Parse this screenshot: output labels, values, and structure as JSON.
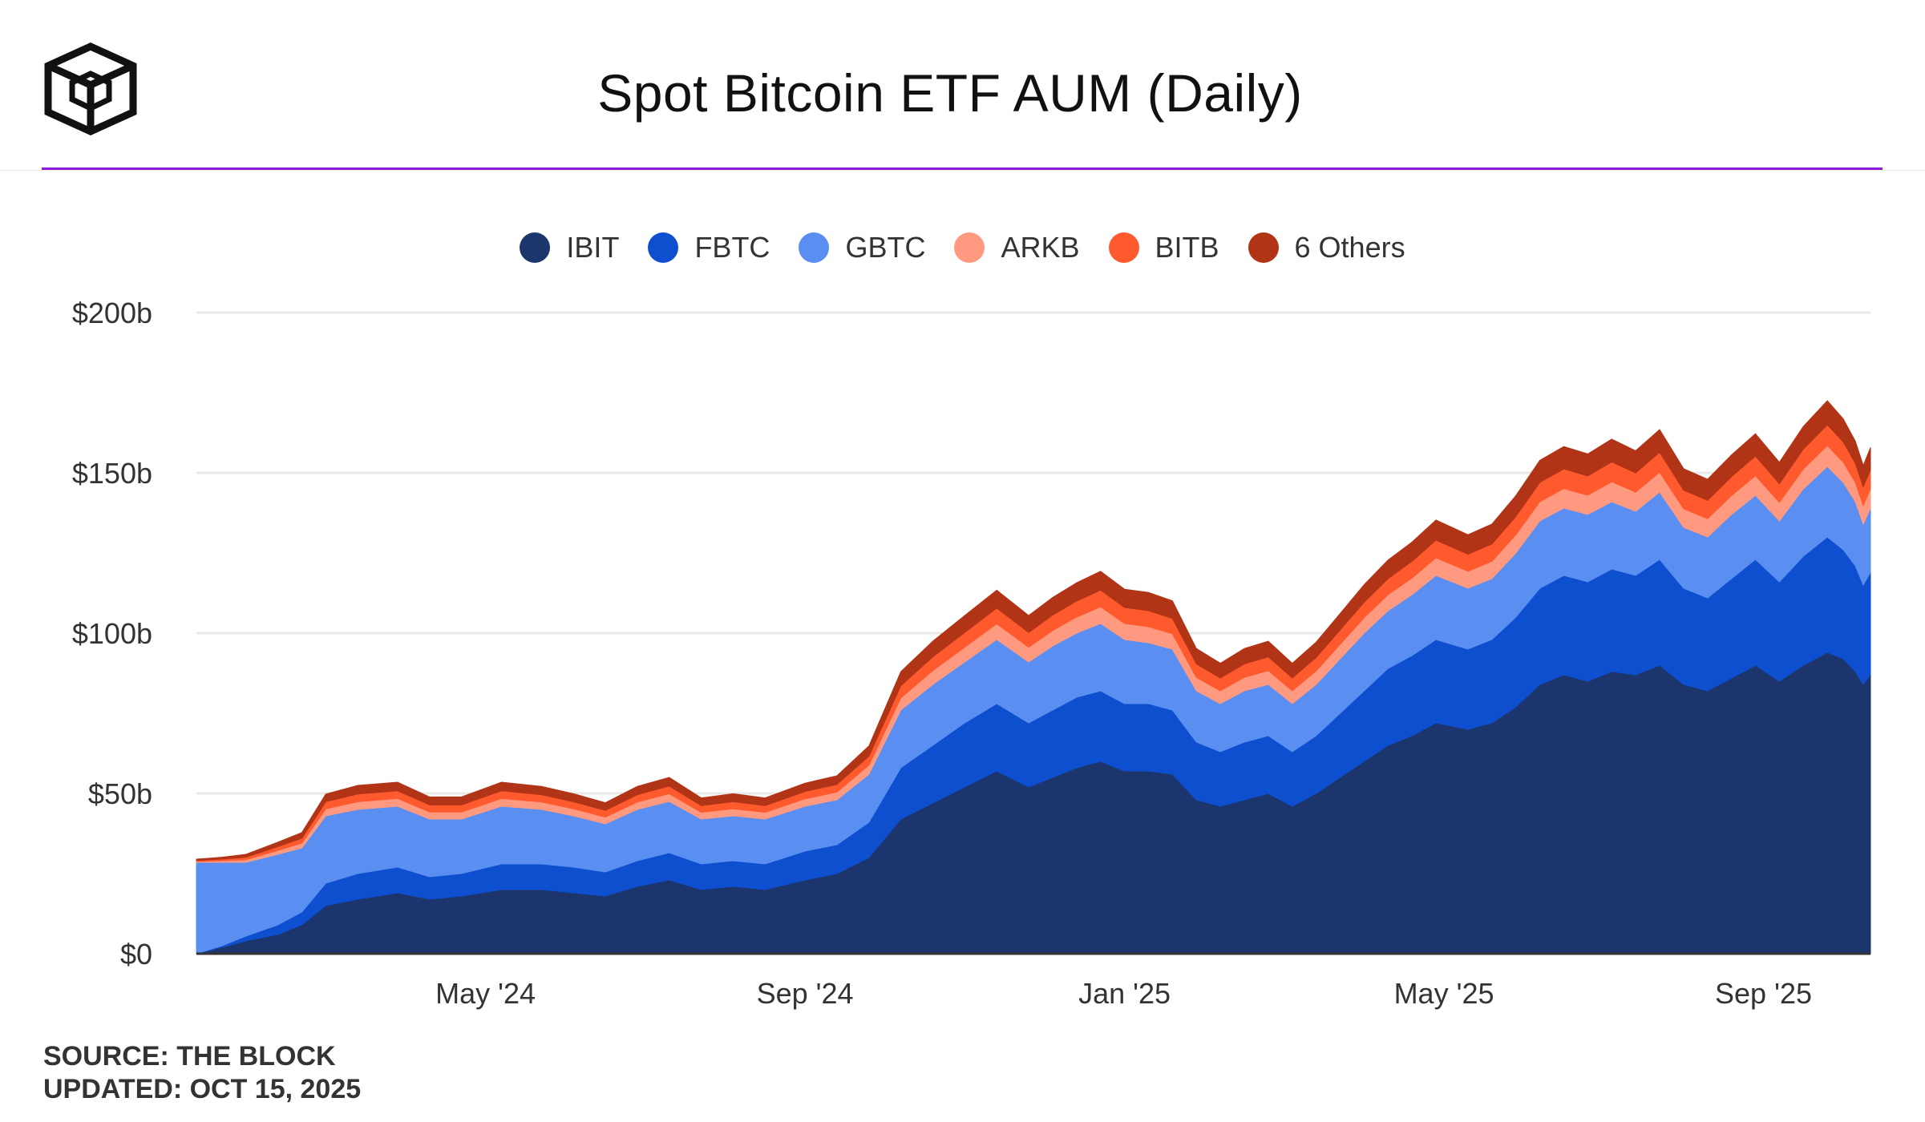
{
  "title": "Spot Bitcoin ETF AUM (Daily)",
  "source": "SOURCE: THE BLOCK",
  "updated": "UPDATED: OCT 15, 2025",
  "colors": {
    "accent": "#8e1bd6",
    "grid": "#e8e8e8",
    "axis": "#333333"
  },
  "chart_data": {
    "type": "area",
    "stacked": true,
    "title": "Spot Bitcoin ETF AUM (Daily)",
    "xlabel": "",
    "ylabel": "",
    "ylim": [
      0,
      200
    ],
    "y_unit": "billion USD",
    "y_ticks": [
      0,
      50,
      100,
      150,
      200
    ],
    "y_tick_labels": [
      "$0",
      "$50b",
      "$100b",
      "$150b",
      "$200b"
    ],
    "x_ticks": [
      3.5,
      7.5,
      11.5,
      15.5,
      19.5
    ],
    "x_tick_labels": [
      "May '24",
      "Sep '24",
      "Jan '25",
      "May '25",
      "Sep '25"
    ],
    "x_range": [
      -0.12,
      20.84
    ],
    "x": [
      -0.12,
      0.2,
      0.5,
      0.9,
      1.2,
      1.5,
      1.9,
      2.4,
      2.8,
      3.2,
      3.7,
      4.2,
      4.6,
      5.0,
      5.4,
      5.8,
      6.2,
      6.6,
      7.0,
      7.5,
      7.9,
      8.3,
      8.7,
      9.1,
      9.5,
      9.9,
      10.3,
      10.6,
      10.9,
      11.2,
      11.5,
      11.8,
      12.1,
      12.4,
      12.7,
      13.0,
      13.3,
      13.6,
      13.9,
      14.2,
      14.5,
      14.8,
      15.1,
      15.4,
      15.8,
      16.1,
      16.4,
      16.7,
      17.0,
      17.3,
      17.6,
      17.9,
      18.2,
      18.5,
      18.8,
      19.1,
      19.4,
      19.7,
      20.0,
      20.3,
      20.5,
      20.65,
      20.75,
      20.84
    ],
    "series": [
      {
        "name": "IBIT",
        "color": "#1c356c",
        "values": [
          0,
          2,
          4,
          6,
          9,
          15,
          17,
          19,
          17,
          18,
          20,
          20,
          19,
          18,
          21,
          23,
          20,
          21,
          20,
          23,
          25,
          30,
          42,
          47,
          52,
          57,
          52,
          55,
          58,
          60,
          57,
          57,
          56,
          48,
          46,
          48,
          50,
          46,
          50,
          55,
          60,
          65,
          68,
          72,
          70,
          72,
          77,
          84,
          87,
          85,
          88,
          87,
          90,
          84,
          82,
          86,
          90,
          85,
          90,
          94,
          92,
          88,
          84,
          87
        ]
      },
      {
        "name": "FBTC",
        "color": "#0e4fd0",
        "values": [
          0,
          0.5,
          1.5,
          3,
          4,
          7,
          8,
          8,
          7,
          7,
          8,
          8,
          8,
          7.5,
          8,
          8.5,
          8,
          8,
          8,
          9,
          9,
          11,
          16,
          18,
          20,
          21,
          20,
          21,
          22,
          22,
          21,
          21,
          20,
          18,
          17,
          18,
          18,
          17,
          18,
          20,
          22,
          24,
          25,
          26,
          25,
          26,
          28,
          30,
          31,
          31,
          32,
          31,
          33,
          30,
          29,
          31,
          33,
          31,
          34,
          36,
          34,
          33,
          31,
          32
        ]
      },
      {
        "name": "GBTC",
        "color": "#5a8ef0",
        "values": [
          28.5,
          26,
          23,
          22,
          20,
          21,
          20,
          19,
          18,
          17,
          18,
          17,
          16,
          15,
          16,
          16,
          14,
          14,
          14,
          14,
          14,
          15,
          18,
          19,
          19,
          20,
          19,
          20,
          20,
          21,
          20,
          19,
          19,
          16,
          15,
          16,
          16,
          15,
          16,
          17,
          18,
          18,
          19,
          20,
          19,
          19,
          20,
          21,
          21,
          21,
          21,
          20,
          21,
          19,
          19,
          20,
          20,
          19,
          21,
          22,
          21,
          20,
          19,
          20
        ]
      },
      {
        "name": "ARKB",
        "color": "#ff9a80",
        "values": [
          0.3,
          0.5,
          0.8,
          1.2,
          1.5,
          2.2,
          2.4,
          2.4,
          2.2,
          2.2,
          2.4,
          2.3,
          2.2,
          2.1,
          2.3,
          2.4,
          2.1,
          2.2,
          2.1,
          2.3,
          2.4,
          2.8,
          3.8,
          4.3,
          4.6,
          4.9,
          4.6,
          4.8,
          5.0,
          5.2,
          5.0,
          5.0,
          4.8,
          4.2,
          4.0,
          4.2,
          4.3,
          4.0,
          4.2,
          4.5,
          4.8,
          5.0,
          5.2,
          5.5,
          5.3,
          5.4,
          5.7,
          6.0,
          6.1,
          6.0,
          6.2,
          6.0,
          6.2,
          5.8,
          5.7,
          5.9,
          6.1,
          5.8,
          6.2,
          6.5,
          6.3,
          6.0,
          5.8,
          6.0
        ]
      },
      {
        "name": "BITB",
        "color": "#ff5a2e",
        "values": [
          0.3,
          0.5,
          0.8,
          1.2,
          1.5,
          2.2,
          2.4,
          2.4,
          2.2,
          2.2,
          2.4,
          2.3,
          2.2,
          2.1,
          2.3,
          2.4,
          2.1,
          2.2,
          2.1,
          2.3,
          2.4,
          2.8,
          3.8,
          4.3,
          4.6,
          4.9,
          4.6,
          4.8,
          5.0,
          5.2,
          5.0,
          5.0,
          4.8,
          4.2,
          4.0,
          4.2,
          4.3,
          4.0,
          4.2,
          4.5,
          4.8,
          5.0,
          5.2,
          5.5,
          5.3,
          5.4,
          5.7,
          6.0,
          6.1,
          6.0,
          6.2,
          6.0,
          6.2,
          5.8,
          5.7,
          5.9,
          6.1,
          5.8,
          6.2,
          6.5,
          6.3,
          6.0,
          5.8,
          6.0
        ]
      },
      {
        "name": "6 Others",
        "color": "#b23417",
        "values": [
          0.4,
          0.6,
          0.9,
          1.4,
          1.8,
          2.4,
          2.7,
          2.7,
          2.5,
          2.5,
          2.7,
          2.6,
          2.5,
          2.4,
          2.6,
          2.7,
          2.4,
          2.5,
          2.4,
          2.6,
          2.7,
          3.2,
          4.4,
          4.9,
          5.3,
          5.6,
          5.3,
          5.5,
          5.7,
          5.9,
          5.7,
          5.7,
          5.5,
          4.8,
          4.6,
          4.8,
          4.9,
          4.6,
          4.8,
          5.1,
          5.5,
          5.8,
          6.0,
          6.3,
          6.1,
          6.2,
          6.5,
          6.9,
          7.0,
          6.9,
          7.1,
          6.9,
          7.1,
          6.7,
          6.6,
          6.8,
          7.0,
          6.7,
          7.1,
          7.5,
          7.2,
          6.9,
          6.7,
          6.9
        ]
      }
    ]
  }
}
